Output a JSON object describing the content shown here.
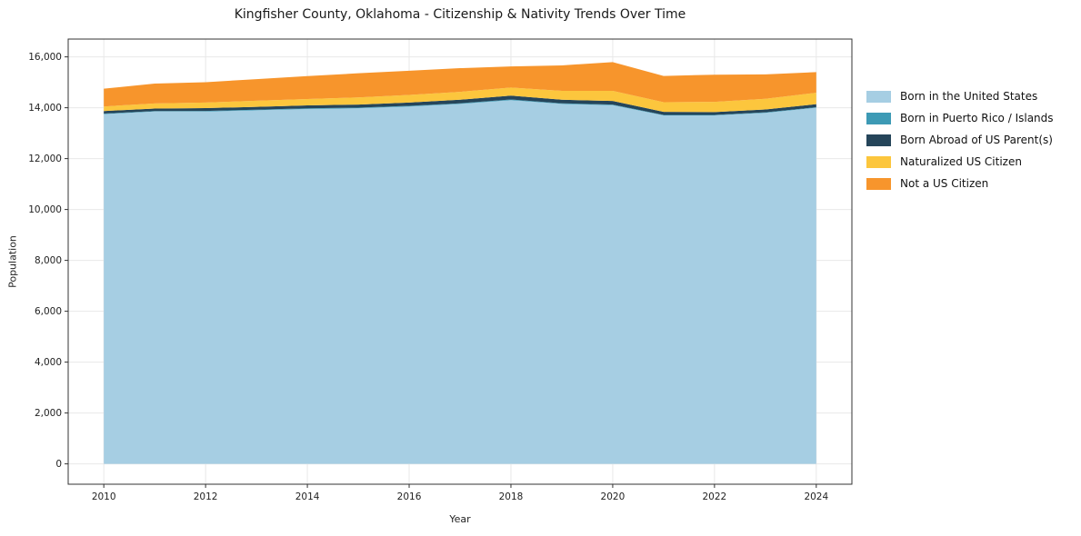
{
  "title": "Kingfisher County, Oklahoma - Citizenship & Nativity Trends Over Time",
  "chart_data": {
    "type": "area",
    "stacked": true,
    "title": "Kingfisher County, Oklahoma - Citizenship & Nativity Trends Over Time",
    "xlabel": "Year",
    "ylabel": "Population",
    "x": [
      2010,
      2011,
      2012,
      2013,
      2014,
      2015,
      2016,
      2017,
      2018,
      2019,
      2020,
      2021,
      2022,
      2023,
      2024
    ],
    "series": [
      {
        "name": "Born in the United States",
        "color": "#a6cee3",
        "values": [
          13750,
          13850,
          13850,
          13900,
          13950,
          13980,
          14050,
          14150,
          14300,
          14150,
          14100,
          13700,
          13700,
          13800,
          14000
        ]
      },
      {
        "name": "Born in Puerto Rico / Islands",
        "color": "#3d9ab5",
        "values": [
          20,
          20,
          25,
          25,
          25,
          25,
          25,
          25,
          25,
          25,
          25,
          20,
          20,
          20,
          20
        ]
      },
      {
        "name": "Born Abroad of US Parent(s)",
        "color": "#25455a",
        "values": [
          100,
          100,
          110,
          110,
          120,
          120,
          130,
          140,
          150,
          140,
          140,
          120,
          110,
          110,
          120
        ]
      },
      {
        "name": "Naturalized US Citizen",
        "color": "#fcc63d",
        "values": [
          180,
          200,
          220,
          240,
          250,
          280,
          300,
          310,
          320,
          350,
          400,
          380,
          400,
          420,
          450
        ]
      },
      {
        "name": "Not a US Citizen",
        "color": "#f7952c",
        "values": [
          700,
          780,
          800,
          850,
          900,
          950,
          950,
          930,
          830,
          1000,
          1130,
          1030,
          1070,
          960,
          810
        ]
      }
    ],
    "xticks": [
      2010,
      2012,
      2014,
      2016,
      2018,
      2020,
      2022,
      2024
    ],
    "yticks": [
      0,
      2000,
      4000,
      6000,
      8000,
      10000,
      12000,
      14000,
      16000
    ],
    "xlim": [
      2009.3,
      2024.7
    ],
    "ylim": [
      -800,
      16700
    ],
    "grid": true,
    "legend_position": "right"
  }
}
